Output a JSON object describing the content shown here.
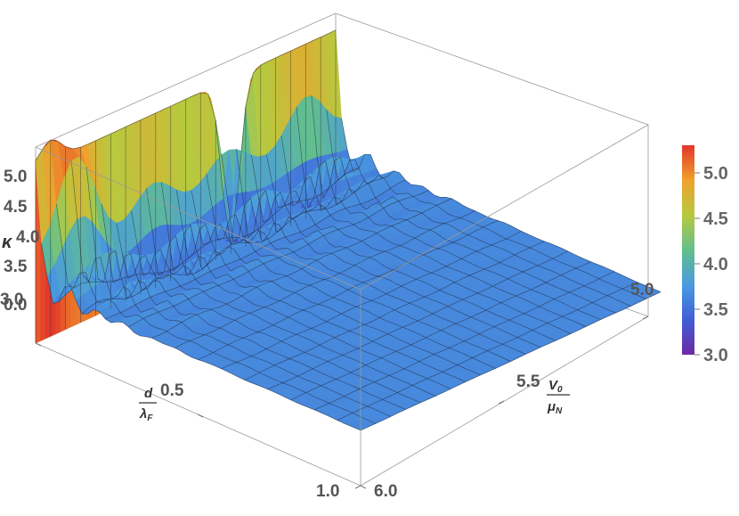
{
  "chart_data": {
    "type": "surface3d",
    "title": "",
    "xlabel": {
      "numerator": "d",
      "denominator": "λ",
      "denominator_sub": "F"
    },
    "ylabel": {
      "numerator": "V",
      "numerator_sub": "0",
      "denominator": "μ",
      "denominator_sub": "N"
    },
    "zlabel": "κ",
    "x_range": [
      0.0,
      1.0
    ],
    "y_range": [
      5.0,
      6.0
    ],
    "z_range": [
      3.0,
      5.3
    ],
    "x_ticks": [
      "0.0",
      "0.5",
      "1.0"
    ],
    "y_ticks": [
      "5.0",
      "5.5",
      "6.0"
    ],
    "z_ticks": [
      "3.0",
      "3.5",
      "4.0",
      "4.5",
      "5.0"
    ],
    "colorbar": {
      "range": [
        3.0,
        5.3
      ],
      "ticks": [
        "3.0",
        "3.5",
        "4.0",
        "4.5",
        "5.0"
      ],
      "colors": [
        "#6b2aa5",
        "#3f5fd6",
        "#4a9be0",
        "#63bf8c",
        "#b7c93f",
        "#f0a02c",
        "#e2362a"
      ]
    },
    "surface_notes": {
      "plateau_value": 3.65,
      "edge_value_at_d0": 5.05,
      "peak": {
        "x": 0.0,
        "y": 5.95,
        "z": 5.3
      },
      "dip": {
        "x": 0.0,
        "y": 5.35,
        "z": 3.1
      }
    }
  }
}
